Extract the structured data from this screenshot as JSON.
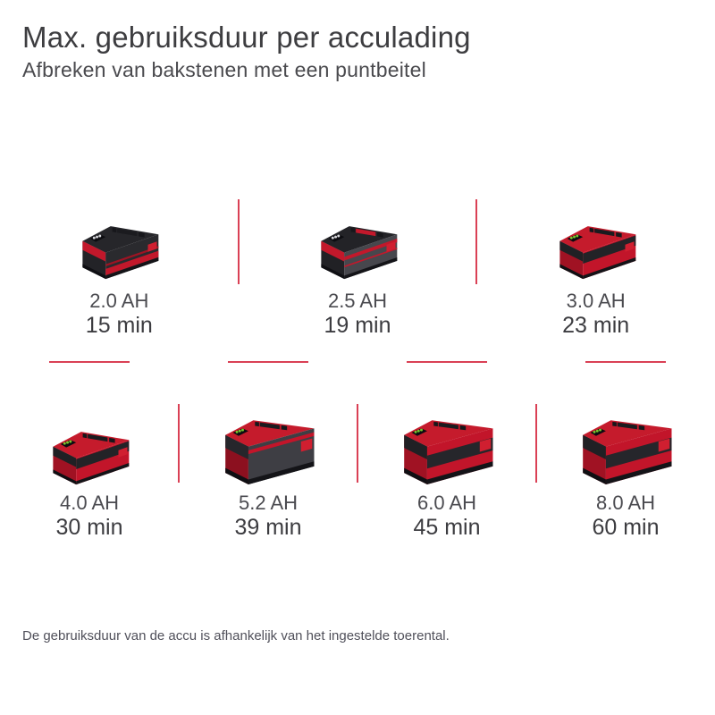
{
  "header": {
    "title": "Max. gebruiksduur per acculading",
    "subtitle": "Afbreken van bakstenen met een puntbeitel"
  },
  "batteries": [
    {
      "capacity": "2.0 AH",
      "runtime": "15 min",
      "style": "s20",
      "size": "small"
    },
    {
      "capacity": "2.5 AH",
      "runtime": "19 min",
      "style": "s25",
      "size": "small"
    },
    {
      "capacity": "3.0 AH",
      "runtime": "23 min",
      "style": "s30",
      "size": "small"
    },
    {
      "capacity": "4.0 AH",
      "runtime": "30 min",
      "style": "s30",
      "size": "small"
    },
    {
      "capacity": "5.2 AH",
      "runtime": "39 min",
      "style": "s52",
      "size": "large"
    },
    {
      "capacity": "6.0 AH",
      "runtime": "45 min",
      "style": "s60",
      "size": "large"
    },
    {
      "capacity": "8.0 AH",
      "runtime": "60 min",
      "style": "s60",
      "size": "large"
    }
  ],
  "footer": {
    "note": "De gebruiksduur van de accu is afhankelijk van het ingestelde toerental."
  },
  "colors": {
    "brand_red": "#c2152a",
    "divider_red": "#da4055",
    "title_text": "#3d3d40",
    "subtitle_text": "#4a4a4e",
    "label_text": "#4b4b50",
    "value_text": "#3c3c40",
    "footer_text": "#50505a"
  }
}
